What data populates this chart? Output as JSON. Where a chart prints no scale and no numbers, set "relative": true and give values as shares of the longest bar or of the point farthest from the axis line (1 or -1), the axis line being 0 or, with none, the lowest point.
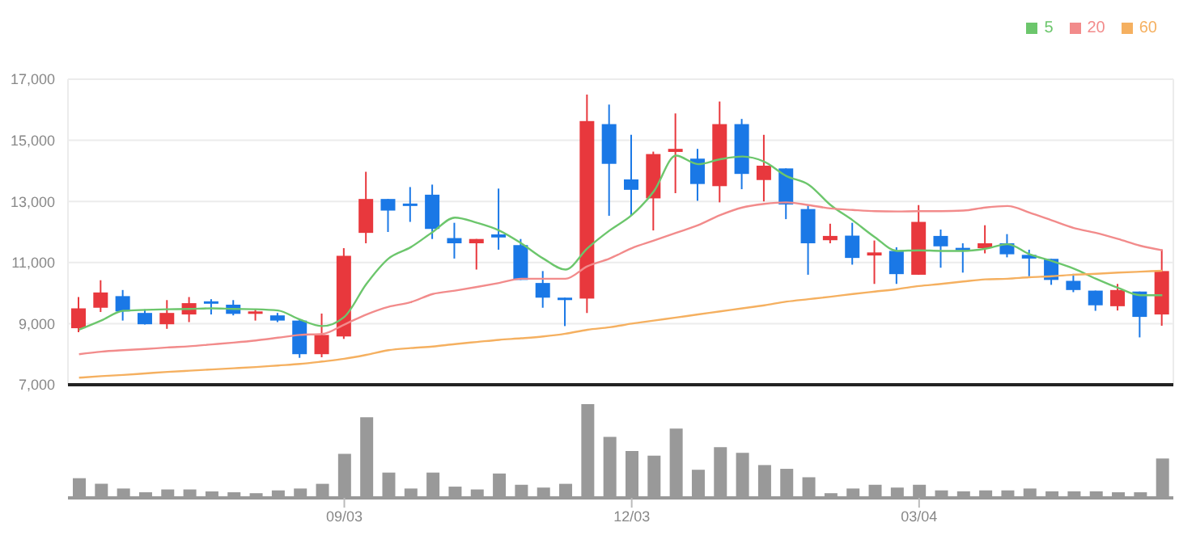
{
  "chart_data": [
    {
      "type": "candlestick",
      "categories": [
        null,
        null,
        null,
        null,
        null,
        null,
        null,
        null,
        null,
        null,
        null,
        null,
        null,
        null,
        null,
        null,
        null,
        null,
        null,
        null,
        null,
        null,
        null,
        null,
        null,
        null,
        null,
        null,
        null,
        null,
        null,
        null,
        null,
        null,
        null,
        null,
        null,
        null,
        null,
        null,
        null,
        null,
        null,
        null,
        null,
        null,
        null,
        null,
        null,
        null
      ],
      "ohlc": [
        [
          8850,
          9870,
          8720,
          9500
        ],
        [
          9520,
          10420,
          9380,
          10020
        ],
        [
          9900,
          10100,
          9100,
          9400
        ],
        [
          9350,
          9470,
          8970,
          8980
        ],
        [
          8980,
          9770,
          8830,
          9350
        ],
        [
          9300,
          9870,
          9050,
          9670
        ],
        [
          9730,
          9800,
          9300,
          9670
        ],
        [
          9620,
          9770,
          9270,
          9320
        ],
        [
          9320,
          9480,
          9100,
          9400
        ],
        [
          9270,
          9350,
          9050,
          9100
        ],
        [
          9100,
          9130,
          7880,
          8000
        ],
        [
          8000,
          9330,
          7900,
          8630
        ],
        [
          8580,
          11470,
          8500,
          11220
        ],
        [
          11970,
          13970,
          11630,
          13080
        ],
        [
          13080,
          13080,
          12000,
          12700
        ],
        [
          12930,
          13470,
          12330,
          12870
        ],
        [
          13220,
          13550,
          11770,
          12100
        ],
        [
          11800,
          12300,
          11130,
          11630
        ],
        [
          11630,
          11770,
          10770,
          11770
        ],
        [
          11920,
          13420,
          11420,
          11820
        ],
        [
          11570,
          11770,
          10430,
          10430
        ],
        [
          10330,
          10720,
          9520,
          9850
        ],
        [
          9850,
          9850,
          8920,
          9780
        ],
        [
          9820,
          16500,
          9350,
          15630
        ],
        [
          15530,
          16170,
          12530,
          14230
        ],
        [
          13720,
          15180,
          12550,
          13380
        ],
        [
          13100,
          14630,
          12050,
          14550
        ],
        [
          14620,
          15880,
          13270,
          14720
        ],
        [
          14400,
          14720,
          13020,
          13570
        ],
        [
          13500,
          16270,
          12970,
          15530
        ],
        [
          15530,
          15700,
          13400,
          13900
        ],
        [
          13700,
          15180,
          13000,
          14170
        ],
        [
          14080,
          14080,
          12420,
          12900
        ],
        [
          12750,
          12880,
          10600,
          11630
        ],
        [
          11730,
          12270,
          11630,
          11870
        ],
        [
          11880,
          12300,
          10930,
          11150
        ],
        [
          11230,
          11720,
          10300,
          11330
        ],
        [
          11380,
          11500,
          10300,
          10620
        ],
        [
          10600,
          12880,
          10600,
          12330
        ],
        [
          11870,
          12080,
          10830,
          11530
        ],
        [
          11480,
          11630,
          10670,
          11400
        ],
        [
          11470,
          12220,
          11300,
          11630
        ],
        [
          11630,
          11930,
          11170,
          11270
        ],
        [
          11250,
          11420,
          10550,
          11130
        ],
        [
          11120,
          11120,
          10270,
          10430
        ],
        [
          10400,
          10630,
          10030,
          10100
        ],
        [
          10080,
          10080,
          9420,
          9600
        ],
        [
          9570,
          10300,
          9430,
          10100
        ],
        [
          10050,
          10050,
          8550,
          9220
        ],
        [
          9300,
          11430,
          8930,
          10720
        ]
      ],
      "colors": [
        "#e8383d",
        "#e8383d",
        "#1a78e6",
        "#1a78e6",
        "#e8383d",
        "#e8383d",
        "#1a78e6",
        "#1a78e6",
        "#e8383d",
        "#1a78e6",
        "#1a78e6",
        "#e8383d",
        "#e8383d",
        "#e8383d",
        "#1a78e6",
        "#1a78e6",
        "#1a78e6",
        "#1a78e6",
        "#e8383d",
        "#1a78e6",
        "#1a78e6",
        "#1a78e6",
        "#1a78e6",
        "#e8383d",
        "#1a78e6",
        "#1a78e6",
        "#e8383d",
        "#e8383d",
        "#1a78e6",
        "#e8383d",
        "#1a78e6",
        "#e8383d",
        "#1a78e6",
        "#1a78e6",
        "#e8383d",
        "#1a78e6",
        "#e8383d",
        "#1a78e6",
        "#e8383d",
        "#1a78e6",
        "#1a78e6",
        "#e8383d",
        "#1a78e6",
        "#1a78e6",
        "#1a78e6",
        "#1a78e6",
        "#1a78e6",
        "#e8383d",
        "#1a78e6",
        "#e8383d"
      ],
      "series": [
        {
          "name": "5",
          "type": "line",
          "color": "#6cc66c",
          "values": [
            8800,
            9100,
            9420,
            9450,
            9470,
            9480,
            9500,
            9480,
            9470,
            9430,
            9130,
            8920,
            9220,
            10300,
            11130,
            11500,
            12000,
            12470,
            12300,
            12050,
            11630,
            11130,
            10770,
            11470,
            12050,
            12550,
            13330,
            14500,
            14220,
            14380,
            14470,
            14300,
            13830,
            13550,
            12880,
            12380,
            11830,
            11380,
            11400,
            11380,
            11380,
            11450,
            11600,
            11270,
            11050,
            10800,
            10470,
            10170,
            9930,
            9930
          ]
        },
        {
          "name": "20",
          "type": "line",
          "color": "#f28b8b",
          "values": [
            8000,
            8080,
            8130,
            8170,
            8220,
            8260,
            8320,
            8380,
            8450,
            8540,
            8630,
            8660,
            8970,
            9300,
            9550,
            9700,
            9970,
            10080,
            10200,
            10330,
            10470,
            10470,
            10470,
            10880,
            11130,
            11470,
            11720,
            11970,
            12220,
            12550,
            12800,
            12920,
            12970,
            12880,
            12770,
            12720,
            12680,
            12670,
            12680,
            12680,
            12700,
            12800,
            12850,
            12630,
            12380,
            12130,
            11970,
            11770,
            11550,
            11400
          ]
        },
        {
          "name": "60",
          "type": "line",
          "color": "#f5b060",
          "values": [
            7230,
            7280,
            7320,
            7370,
            7420,
            7460,
            7500,
            7540,
            7580,
            7630,
            7680,
            7760,
            7850,
            7980,
            8130,
            8200,
            8250,
            8330,
            8400,
            8470,
            8520,
            8580,
            8670,
            8800,
            8880,
            9000,
            9100,
            9200,
            9300,
            9400,
            9500,
            9600,
            9720,
            9800,
            9880,
            9970,
            10050,
            10130,
            10230,
            10300,
            10380,
            10450,
            10470,
            10520,
            10550,
            10600,
            10630,
            10670,
            10700,
            10730
          ]
        }
      ],
      "ylim": [
        7000,
        17000
      ],
      "yticks": [
        {
          "value": 7000,
          "label": "7,000"
        },
        {
          "value": 9000,
          "label": "9,000"
        },
        {
          "value": 11000,
          "label": "11,000"
        },
        {
          "value": 13000,
          "label": "13,000"
        },
        {
          "value": 15000,
          "label": "15,000"
        },
        {
          "value": 17000,
          "label": "17,000"
        }
      ],
      "grid": true,
      "legend": "top right",
      "tick_labels": "y"
    },
    {
      "type": "bar",
      "relative": true,
      "tick_labels": "x",
      "color": "#999999",
      "categories": [
        null,
        null,
        null,
        null,
        null,
        null,
        null,
        null,
        null,
        null,
        null,
        null,
        "09/03",
        null,
        null,
        null,
        null,
        null,
        null,
        null,
        null,
        null,
        null,
        null,
        null,
        "12/03",
        null,
        null,
        null,
        null,
        null,
        null,
        null,
        null,
        null,
        null,
        null,
        null,
        "03/04",
        null,
        null,
        null,
        null,
        null,
        null,
        null,
        null,
        null,
        null,
        null
      ],
      "values": [
        0.21,
        0.15,
        0.1,
        0.06,
        0.09,
        0.09,
        0.07,
        0.06,
        0.05,
        0.08,
        0.1,
        0.15,
        0.47,
        0.86,
        0.27,
        0.1,
        0.27,
        0.12,
        0.09,
        0.26,
        0.14,
        0.11,
        0.15,
        1,
        0.65,
        0.5,
        0.45,
        0.74,
        0.3,
        0.54,
        0.48,
        0.35,
        0.31,
        0.22,
        0.05,
        0.1,
        0.14,
        0.11,
        0.14,
        0.08,
        0.07,
        0.08,
        0.08,
        0.1,
        0.07,
        0.07,
        0.07,
        0.06,
        0.06,
        0.42
      ]
    }
  ]
}
